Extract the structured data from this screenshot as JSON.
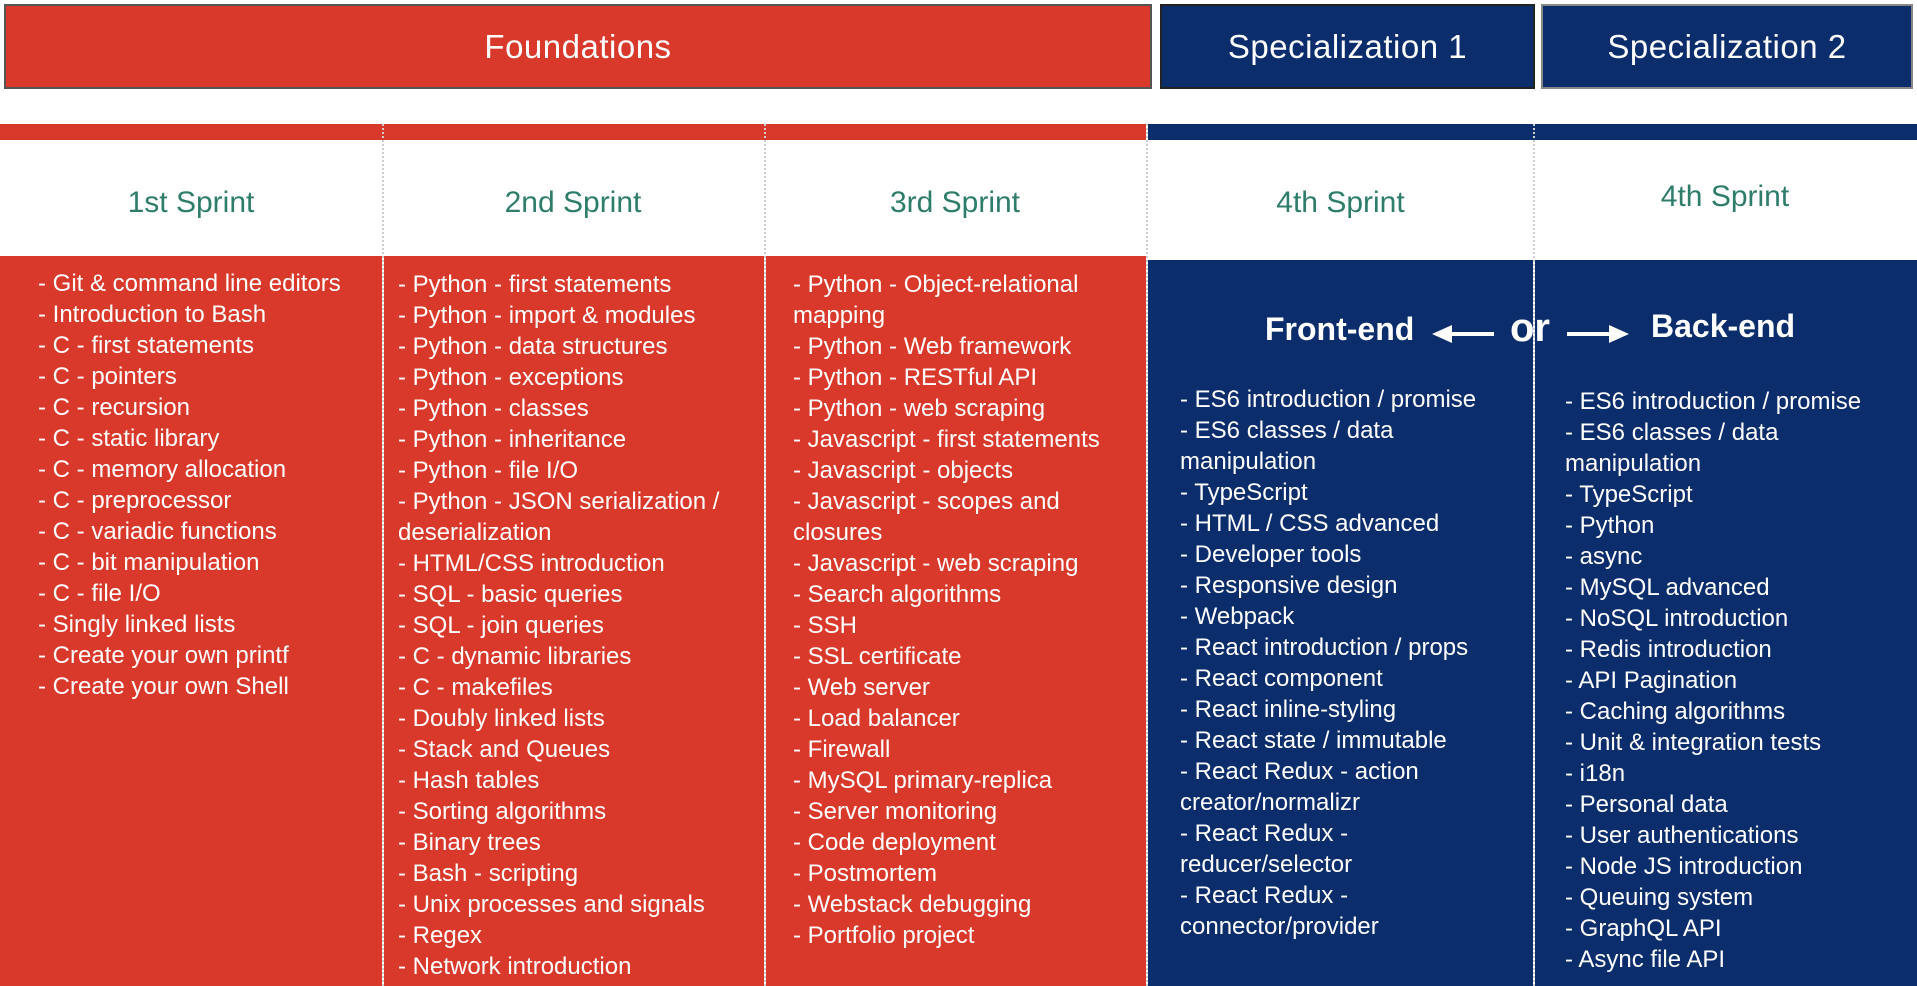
{
  "headers": {
    "foundations": "Foundations",
    "specialization1": "Specialization 1",
    "specialization2": "Specialization 2"
  },
  "sprints": {
    "s1": "1st Sprint",
    "s2": "2nd Sprint",
    "s3": "3rd Sprint",
    "s4a": "4th Sprint",
    "s4b": "4th Sprint"
  },
  "tracks": {
    "frontend": "Front-end",
    "or": "or",
    "backend": "Back-end"
  },
  "colors": {
    "foundations_red": "#d9392b",
    "specialization_blue": "#0c2d6b",
    "sprint_title_green": "#2e7d6b"
  },
  "col1": [
    "- Git & command line editors",
    "- Introduction to Bash",
    "- C - first statements",
    "- C - pointers",
    "- C - recursion",
    "- C - static library",
    "- C - memory allocation",
    "- C - preprocessor",
    "- C - variadic functions",
    "- C - bit manipulation",
    "- C - file I/O",
    "- Singly linked lists",
    "- Create your own printf",
    "- Create your own Shell"
  ],
  "col2": [
    "- Python - first statements",
    "- Python - import & modules",
    "- Python - data structures",
    "- Python - exceptions",
    "- Python - classes",
    "- Python - inheritance",
    "- Python - file I/O",
    "- Python - JSON serialization / deserialization",
    "- HTML/CSS introduction",
    "- SQL - basic queries",
    "- SQL - join queries",
    "- C - dynamic libraries",
    "- C - makefiles",
    "- Doubly linked lists",
    "- Stack and Queues",
    "- Hash tables",
    "- Sorting algorithms",
    "- Binary trees",
    "- Bash - scripting",
    "- Unix processes and signals",
    "- Regex",
    "- Network introduction"
  ],
  "col3": [
    "- Python - Object-relational mapping",
    "- Python - Web framework",
    "- Python - RESTful API",
    "- Python - web scraping",
    "- Javascript - first statements",
    "- Javascript - objects",
    "- Javascript - scopes and closures",
    "- Javascript - web scraping",
    "- Search algorithms",
    "- SSH",
    "- SSL certificate",
    "- Web server",
    "- Load balancer",
    "- Firewall",
    "- MySQL primary-replica",
    "- Server monitoring",
    "- Code deployment",
    "- Postmortem",
    "- Webstack debugging",
    "- Portfolio project"
  ],
  "col4": [
    "- ES6 introduction / promise",
    "- ES6 classes / data manipulation",
    "- TypeScript",
    "- HTML / CSS advanced",
    "- Developer tools",
    "- Responsive design",
    "- Webpack",
    "- React introduction / props",
    "- React component",
    "- React inline-styling",
    "- React state / immutable",
    "- React Redux - action creator/normalizr",
    "- React Redux - reducer/selector",
    "- React Redux - connector/provider"
  ],
  "col5": [
    "- ES6 introduction / promise",
    "- ES6 classes / data manipulation",
    "- TypeScript",
    "- Python",
    " - async",
    "- MySQL advanced",
    "- NoSQL introduction",
    "- Redis introduction",
    "- API Pagination",
    "- Caching algorithms",
    "- Unit & integration tests",
    "- i18n",
    "- Personal data",
    "- User authentications",
    "- Node JS introduction",
    "- Queuing system",
    "- GraphQL API",
    "- Async file API"
  ]
}
